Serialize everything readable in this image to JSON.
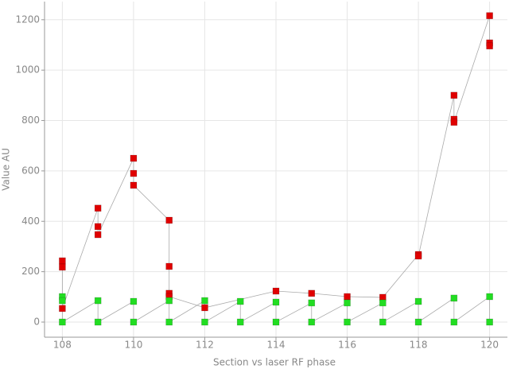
{
  "chart_data": {
    "type": "scatter",
    "xlabel": "Section vs laser RF phase",
    "ylabel": "Value AU",
    "xlim": [
      107.5,
      120.5
    ],
    "ylim": [
      -60,
      1272
    ],
    "xticks": [
      108,
      110,
      112,
      114,
      116,
      118,
      120
    ],
    "yticks": [
      0,
      200,
      400,
      600,
      800,
      1000,
      1200
    ],
    "grid": true,
    "line_color": "#aaaaaa",
    "series": [
      {
        "color": "#e00000",
        "x": [
          108,
          108,
          108,
          109,
          109,
          109,
          110,
          110,
          110,
          111,
          111,
          111,
          111,
          112,
          114,
          115,
          116,
          117,
          118,
          118,
          119,
          119,
          119,
          120,
          120,
          120
        ],
        "values": [
          243,
          218,
          54,
          452,
          379,
          347,
          650,
          590,
          543,
          404,
          221,
          114,
          101,
          57,
          123,
          114,
          101,
          98,
          268,
          262,
          900,
          805,
          793,
          1216,
          1108,
          1096
        ]
      },
      {
        "color": "#22dd22",
        "x": [
          108,
          108,
          108,
          109,
          109,
          110,
          110,
          111,
          111,
          112,
          112,
          113,
          113,
          114,
          114,
          115,
          115,
          116,
          116,
          117,
          117,
          118,
          118,
          119,
          119,
          120,
          120
        ],
        "values": [
          101,
          85,
          0,
          85,
          0,
          82,
          0,
          85,
          0,
          85,
          0,
          82,
          0,
          79,
          0,
          76,
          0,
          76,
          0,
          76,
          0,
          82,
          0,
          95,
          0,
          101,
          0
        ]
      }
    ]
  }
}
